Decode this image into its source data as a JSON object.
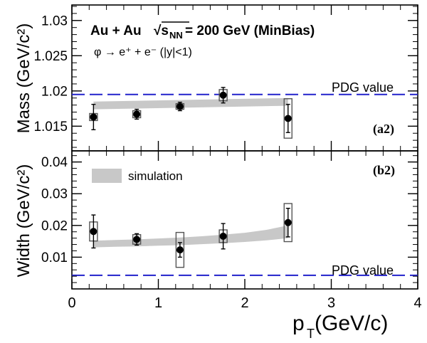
{
  "chart_data": [
    {
      "type": "scatter",
      "panel_tag": "(a2)",
      "ylabel": "Mass (GeV/c²)",
      "ylim": [
        1.0115,
        1.0322
      ],
      "yticks": [
        "1.015",
        "1.02",
        "1.025",
        "1.03"
      ],
      "title_main": "Au + Au",
      "title_energy": "√s",
      "title_sub": "NN",
      "title_rest": " = 200 GeV (MinBias)",
      "decay_label": "φ → e⁺ + e⁻  (|y|<1)",
      "reference": {
        "label": "PDG value",
        "value": 1.0195
      },
      "band_color": "#c8c8c8",
      "reference_color": "#2222cc",
      "series": [
        {
          "x": [
            0.25,
            0.75,
            1.25,
            1.75,
            2.5
          ],
          "y": [
            1.0163,
            1.0167,
            1.0178,
            1.0194,
            1.0161
          ],
          "stat_err": [
            0.0018,
            0.0007,
            0.0006,
            0.0011,
            0.002
          ],
          "sys_err": [
            0.0005,
            0.0005,
            0.0004,
            0.0008,
            0.0028
          ]
        }
      ],
      "band": {
        "x": [
          0.25,
          2.5
        ],
        "low": [
          1.0174,
          1.0179
        ],
        "high": [
          1.0185,
          1.019
        ]
      }
    },
    {
      "type": "scatter",
      "panel_tag": "(b2)",
      "ylabel": "Width (GeV/c²)",
      "xlabel_main": "p",
      "xlabel_sub": "T",
      "xlabel_rest": " (GeV/c)",
      "xlim": [
        0,
        4
      ],
      "xticks": [
        "0",
        "1",
        "2",
        "3",
        "4"
      ],
      "ylim": [
        0,
        0.0435
      ],
      "yticks": [
        "0.01",
        "0.02",
        "0.03",
        "0.04"
      ],
      "legend": "simulation",
      "reference": {
        "label": "PDG value",
        "value": 0.0043
      },
      "series": [
        {
          "x": [
            0.25,
            0.75,
            1.25,
            1.75,
            2.5
          ],
          "y": [
            0.0181,
            0.0156,
            0.0123,
            0.0166,
            0.0209
          ],
          "stat_err": [
            0.0052,
            0.0018,
            0.0023,
            0.004,
            0.0045
          ],
          "sys_err": [
            0.003,
            0.0015,
            0.0055,
            0.002,
            0.006
          ]
        }
      ],
      "band": {
        "x": [
          0.25,
          0.5,
          0.75,
          1.0,
          1.25,
          1.5,
          1.75,
          2.0,
          2.25,
          2.5
        ],
        "low": [
          0.0131,
          0.0133,
          0.0134,
          0.0136,
          0.0138,
          0.0141,
          0.0144,
          0.0148,
          0.0153,
          0.016
        ],
        "high": [
          0.0152,
          0.0154,
          0.0156,
          0.0159,
          0.0162,
          0.0166,
          0.0171,
          0.0177,
          0.0186,
          0.02
        ]
      }
    }
  ]
}
